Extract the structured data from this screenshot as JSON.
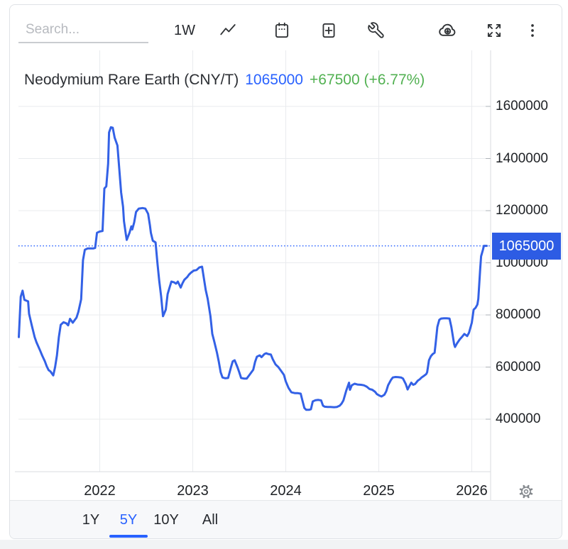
{
  "toolbar": {
    "search_placeholder": "Search...",
    "interval_label": "1W",
    "icon_buttons": [
      "trend-line",
      "calendar",
      "add-chart",
      "tools-wrench",
      "cloud-download",
      "fullscreen",
      "more-menu"
    ]
  },
  "legend": {
    "title": "Neodymium Rare Earth (CNY/T)",
    "price": "1065000",
    "change": "+67500 (+6.77%)"
  },
  "axes": {
    "price_badge_label": "1065000"
  },
  "range_bar": {
    "options": [
      {
        "label": "1Y",
        "active": false
      },
      {
        "label": "5Y",
        "active": true
      },
      {
        "label": "10Y",
        "active": false
      },
      {
        "label": "All",
        "active": false
      }
    ]
  },
  "colors": {
    "line_blue": "#3361e6",
    "accent_blue": "#2962ff",
    "badge_blue": "#2d5ce4",
    "green": "#52b152",
    "gridline": "#e9ebee",
    "axis_line": "#d8dbdf",
    "tick": "#aeb3b8"
  },
  "chart_data": {
    "type": "line",
    "title": "Neodymium Rare Earth (CNY/T)",
    "unit": "CNY/T",
    "last_value": 1065000,
    "change_abs": 67500,
    "change_pct": 6.77,
    "interval": "1W",
    "range_selected": "5Y",
    "grid": true,
    "legend_position": "top-left",
    "x_ticks": [
      2022,
      2023,
      2024,
      2025,
      2026
    ],
    "y_ticks": [
      1600000,
      1400000,
      1200000,
      1000000,
      800000,
      600000,
      400000
    ],
    "xlim": [
      2021.1,
      2026.22
    ],
    "ylim": [
      320000,
      1720000
    ],
    "current_price_line": 1065000,
    "series": [
      {
        "name": "Neodymium Rare Earth (CNY/T)",
        "points": [
          [
            2021.13,
            715000
          ],
          [
            2021.15,
            870000
          ],
          [
            2021.17,
            893000
          ],
          [
            2021.19,
            858000
          ],
          [
            2021.23,
            852000
          ],
          [
            2021.24,
            805000
          ],
          [
            2021.27,
            758000
          ],
          [
            2021.3,
            715000
          ],
          [
            2021.32,
            695000
          ],
          [
            2021.36,
            662000
          ],
          [
            2021.38,
            645000
          ],
          [
            2021.41,
            622000
          ],
          [
            2021.43,
            603000
          ],
          [
            2021.45,
            588000
          ],
          [
            2021.47,
            583000
          ],
          [
            2021.48,
            578000
          ],
          [
            2021.5,
            568000
          ],
          [
            2021.52,
            600000
          ],
          [
            2021.54,
            645000
          ],
          [
            2021.56,
            715000
          ],
          [
            2021.58,
            762000
          ],
          [
            2021.61,
            772000
          ],
          [
            2021.64,
            768000
          ],
          [
            2021.66,
            760000
          ],
          [
            2021.68,
            785000
          ],
          [
            2021.71,
            770000
          ],
          [
            2021.73,
            780000
          ],
          [
            2021.75,
            790000
          ],
          [
            2021.77,
            812000
          ],
          [
            2021.8,
            860000
          ],
          [
            2021.82,
            1010000
          ],
          [
            2021.84,
            1050000
          ],
          [
            2021.87,
            1055000
          ],
          [
            2021.9,
            1055000
          ],
          [
            2021.93,
            1055000
          ],
          [
            2021.95,
            1057000
          ],
          [
            2021.97,
            1115000
          ],
          [
            2022.0,
            1120000
          ],
          [
            2022.03,
            1122000
          ],
          [
            2022.05,
            1285000
          ],
          [
            2022.07,
            1293000
          ],
          [
            2022.09,
            1380000
          ],
          [
            2022.1,
            1500000
          ],
          [
            2022.12,
            1520000
          ],
          [
            2022.14,
            1518000
          ],
          [
            2022.16,
            1480000
          ],
          [
            2022.19,
            1450000
          ],
          [
            2022.21,
            1360000
          ],
          [
            2022.23,
            1270000
          ],
          [
            2022.25,
            1215000
          ],
          [
            2022.26,
            1160000
          ],
          [
            2022.28,
            1110000
          ],
          [
            2022.29,
            1088000
          ],
          [
            2022.32,
            1115000
          ],
          [
            2022.34,
            1140000
          ],
          [
            2022.35,
            1128000
          ],
          [
            2022.37,
            1155000
          ],
          [
            2022.39,
            1195000
          ],
          [
            2022.42,
            1208000
          ],
          [
            2022.46,
            1210000
          ],
          [
            2022.49,
            1208000
          ],
          [
            2022.52,
            1188000
          ],
          [
            2022.54,
            1143000
          ],
          [
            2022.55,
            1115000
          ],
          [
            2022.57,
            1085000
          ],
          [
            2022.6,
            1078000
          ],
          [
            2022.62,
            1000000
          ],
          [
            2022.64,
            930000
          ],
          [
            2022.66,
            870000
          ],
          [
            2022.68,
            795000
          ],
          [
            2022.71,
            820000
          ],
          [
            2022.73,
            880000
          ],
          [
            2022.75,
            905000
          ],
          [
            2022.77,
            928000
          ],
          [
            2022.8,
            925000
          ],
          [
            2022.82,
            920000
          ],
          [
            2022.84,
            928000
          ],
          [
            2022.87,
            905000
          ],
          [
            2022.89,
            922000
          ],
          [
            2022.91,
            935000
          ],
          [
            2022.94,
            945000
          ],
          [
            2022.96,
            955000
          ],
          [
            2022.98,
            962000
          ],
          [
            2023.01,
            970000
          ],
          [
            2023.04,
            972000
          ],
          [
            2023.07,
            982000
          ],
          [
            2023.1,
            985000
          ],
          [
            2023.12,
            940000
          ],
          [
            2023.14,
            895000
          ],
          [
            2023.16,
            862000
          ],
          [
            2023.19,
            795000
          ],
          [
            2023.21,
            727000
          ],
          [
            2023.23,
            700000
          ],
          [
            2023.26,
            655000
          ],
          [
            2023.28,
            620000
          ],
          [
            2023.3,
            580000
          ],
          [
            2023.32,
            560000
          ],
          [
            2023.35,
            557000
          ],
          [
            2023.38,
            558000
          ],
          [
            2023.41,
            598000
          ],
          [
            2023.43,
            622000
          ],
          [
            2023.45,
            626000
          ],
          [
            2023.48,
            600000
          ],
          [
            2023.5,
            580000
          ],
          [
            2023.52,
            558000
          ],
          [
            2023.55,
            556000
          ],
          [
            2023.58,
            556000
          ],
          [
            2023.61,
            570000
          ],
          [
            2023.65,
            590000
          ],
          [
            2023.67,
            620000
          ],
          [
            2023.69,
            640000
          ],
          [
            2023.72,
            645000
          ],
          [
            2023.74,
            638000
          ],
          [
            2023.77,
            650000
          ],
          [
            2023.79,
            653000
          ],
          [
            2023.81,
            650000
          ],
          [
            2023.84,
            648000
          ],
          [
            2023.86,
            630000
          ],
          [
            2023.89,
            610000
          ],
          [
            2023.92,
            600000
          ],
          [
            2023.95,
            585000
          ],
          [
            2023.98,
            570000
          ],
          [
            2024.0,
            545000
          ],
          [
            2024.03,
            520000
          ],
          [
            2024.06,
            503000
          ],
          [
            2024.1,
            500000
          ],
          [
            2024.13,
            500000
          ],
          [
            2024.16,
            498000
          ],
          [
            2024.18,
            470000
          ],
          [
            2024.2,
            443000
          ],
          [
            2024.22,
            436000
          ],
          [
            2024.25,
            436000
          ],
          [
            2024.27,
            438000
          ],
          [
            2024.29,
            468000
          ],
          [
            2024.32,
            473000
          ],
          [
            2024.35,
            474000
          ],
          [
            2024.38,
            472000
          ],
          [
            2024.4,
            452000
          ],
          [
            2024.42,
            448000
          ],
          [
            2024.45,
            447000
          ],
          [
            2024.48,
            447000
          ],
          [
            2024.52,
            446000
          ],
          [
            2024.55,
            447000
          ],
          [
            2024.58,
            452000
          ],
          [
            2024.6,
            460000
          ],
          [
            2024.62,
            472000
          ],
          [
            2024.65,
            510000
          ],
          [
            2024.68,
            540000
          ],
          [
            2024.69,
            513000
          ],
          [
            2024.71,
            530000
          ],
          [
            2024.74,
            536000
          ],
          [
            2024.77,
            533000
          ],
          [
            2024.81,
            532000
          ],
          [
            2024.84,
            530000
          ],
          [
            2024.87,
            525000
          ],
          [
            2024.9,
            516000
          ],
          [
            2024.93,
            513000
          ],
          [
            2024.96,
            505000
          ],
          [
            2024.98,
            496000
          ],
          [
            2025.01,
            490000
          ],
          [
            2025.03,
            487000
          ],
          [
            2025.06,
            494000
          ],
          [
            2025.08,
            507000
          ],
          [
            2025.1,
            530000
          ],
          [
            2025.13,
            550000
          ],
          [
            2025.15,
            560000
          ],
          [
            2025.18,
            562000
          ],
          [
            2025.21,
            561000
          ],
          [
            2025.24,
            560000
          ],
          [
            2025.26,
            556000
          ],
          [
            2025.29,
            535000
          ],
          [
            2025.31,
            514000
          ],
          [
            2025.33,
            528000
          ],
          [
            2025.35,
            540000
          ],
          [
            2025.37,
            532000
          ],
          [
            2025.39,
            535000
          ],
          [
            2025.42,
            548000
          ],
          [
            2025.44,
            553000
          ],
          [
            2025.46,
            560000
          ],
          [
            2025.48,
            565000
          ],
          [
            2025.51,
            573000
          ],
          [
            2025.52,
            580000
          ],
          [
            2025.54,
            626000
          ],
          [
            2025.56,
            642000
          ],
          [
            2025.58,
            650000
          ],
          [
            2025.6,
            655000
          ],
          [
            2025.61,
            686000
          ],
          [
            2025.63,
            754000
          ],
          [
            2025.65,
            781000
          ],
          [
            2025.67,
            786000
          ],
          [
            2025.7,
            787000
          ],
          [
            2025.73,
            787000
          ],
          [
            2025.76,
            786000
          ],
          [
            2025.78,
            754000
          ],
          [
            2025.81,
            688000
          ],
          [
            2025.82,
            677000
          ],
          [
            2025.84,
            690000
          ],
          [
            2025.87,
            706000
          ],
          [
            2025.9,
            718000
          ],
          [
            2025.92,
            727000
          ],
          [
            2025.94,
            722000
          ],
          [
            2025.95,
            719000
          ],
          [
            2025.97,
            732000
          ],
          [
            2026.0,
            770000
          ],
          [
            2026.02,
            820000
          ],
          [
            2026.04,
            827000
          ],
          [
            2026.06,
            840000
          ],
          [
            2026.07,
            862000
          ],
          [
            2026.09,
            975000
          ],
          [
            2026.1,
            1025000
          ],
          [
            2026.12,
            1050000
          ],
          [
            2026.13,
            1065000
          ],
          [
            2026.16,
            1065000
          ]
        ]
      }
    ]
  }
}
